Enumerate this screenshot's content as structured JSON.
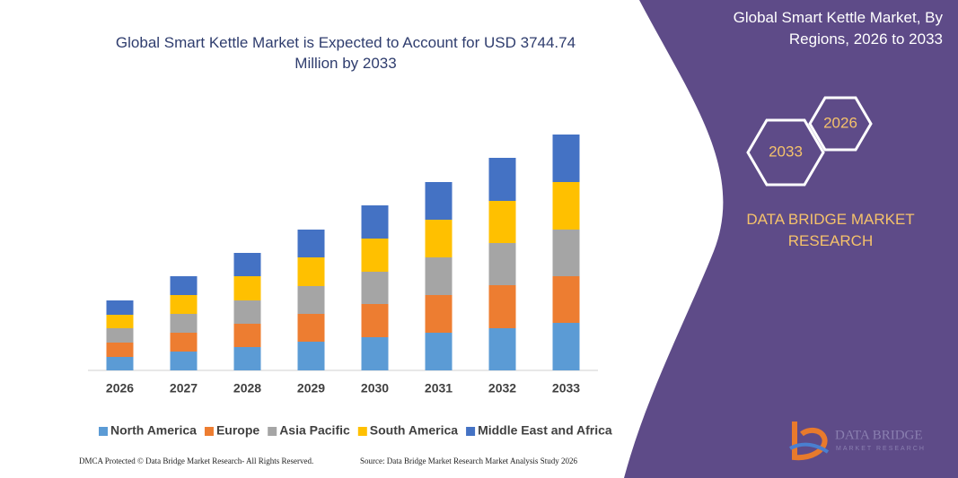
{
  "chart_data": {
    "type": "bar",
    "stacked": true,
    "title": "Global Smart Kettle Market is Expected to Account for USD 3744.74 Million by 2033",
    "categories": [
      "2026",
      "2027",
      "2028",
      "2029",
      "2030",
      "2031",
      "2032",
      "2033"
    ],
    "series": [
      {
        "name": "North America",
        "color": "#5b9bd5",
        "values": [
          15,
          21,
          26,
          32,
          37,
          42,
          47,
          53
        ]
      },
      {
        "name": "Europe",
        "color": "#ed7d31",
        "values": [
          16,
          21,
          26,
          31,
          37,
          42,
          48,
          52
        ]
      },
      {
        "name": "Asia Pacific",
        "color": "#a5a5a5",
        "values": [
          16,
          21,
          26,
          31,
          36,
          42,
          47,
          52
        ]
      },
      {
        "name": "South America",
        "color": "#ffc000",
        "values": [
          15,
          21,
          27,
          32,
          37,
          42,
          47,
          53
        ]
      },
      {
        "name": "Middle East and Africa",
        "color": "#4472c4",
        "values": [
          16,
          21,
          26,
          31,
          37,
          42,
          48,
          53
        ]
      }
    ]
  },
  "sidebar": {
    "title": "Global Smart Kettle Market, By Regions, 2026 to 2033",
    "hex_back": "2026",
    "hex_front": "2033",
    "brand": "DATA BRIDGE MARKET RESEARCH"
  },
  "logo": {
    "name": "DATA BRIDGE",
    "tagline": "MARKET RESEARCH"
  },
  "footer": {
    "left": "DMCA Protected © Data Bridge Market Research- All Rights Reserved.",
    "right": "Source: Data Bridge Market Research Market Analysis Study 2026"
  }
}
